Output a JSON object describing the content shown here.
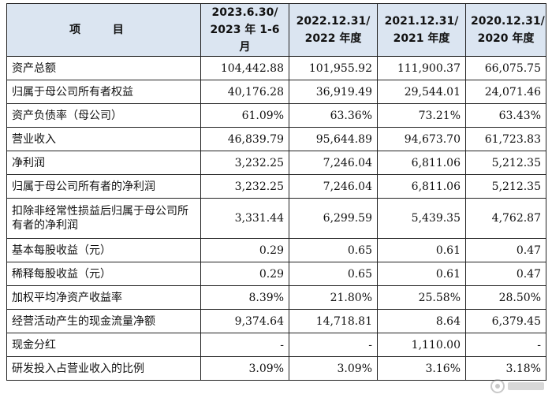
{
  "header": {
    "item": "项 目",
    "periods": [
      [
        "2023.6.30/",
        "2023 年 1-6 月"
      ],
      [
        "2022.12.31/",
        "2022 年度"
      ],
      [
        "2021.12.31/",
        "2021 年度"
      ],
      [
        "2020.12.31/",
        "2020 年度"
      ]
    ]
  },
  "rows": [
    {
      "label": "资产总额",
      "values": [
        "104,442.88",
        "101,955.92",
        "111,900.37",
        "66,075.75"
      ]
    },
    {
      "label": "归属于母公司所有者权益",
      "values": [
        "40,176.28",
        "36,919.49",
        "29,544.01",
        "24,071.46"
      ]
    },
    {
      "label": "资产负债率（母公司）",
      "values": [
        "61.09%",
        "63.36%",
        "73.21%",
        "63.43%"
      ]
    },
    {
      "label": "营业收入",
      "values": [
        "46,839.79",
        "95,644.89",
        "94,673.70",
        "61,723.83"
      ]
    },
    {
      "label": "净利润",
      "values": [
        "3,232.25",
        "7,246.04",
        "6,811.06",
        "5,212.35"
      ]
    },
    {
      "label": "归属于母公司所有者的净利润",
      "values": [
        "3,232.25",
        "7,246.04",
        "6,811.06",
        "5,212.35"
      ]
    },
    {
      "label": "扣除非经常性损益后归属于母公司所有者的净利润",
      "values": [
        "3,331.44",
        "6,299.59",
        "5,439.35",
        "4,762.87"
      ],
      "tall": true
    },
    {
      "label": "基本每股收益（元）",
      "values": [
        "0.29",
        "0.65",
        "0.61",
        "0.47"
      ]
    },
    {
      "label": "稀释每股收益（元）",
      "values": [
        "0.29",
        "0.65",
        "0.61",
        "0.47"
      ]
    },
    {
      "label": "加权平均净资产收益率",
      "values": [
        "8.39%",
        "21.80%",
        "25.58%",
        "28.50%"
      ]
    },
    {
      "label": "经营活动产生的现金流量净额",
      "values": [
        "9,374.64",
        "14,718.81",
        "8.64",
        "6,379.45"
      ]
    },
    {
      "label": "现金分红",
      "values": [
        "-",
        "-",
        "1,110.00",
        "-"
      ]
    },
    {
      "label": "研发投入占营业收入的比例",
      "values": [
        "3.09%",
        "3.09%",
        "3.16%",
        "3.18%"
      ]
    }
  ],
  "watermark_icon": "watermark-logo"
}
